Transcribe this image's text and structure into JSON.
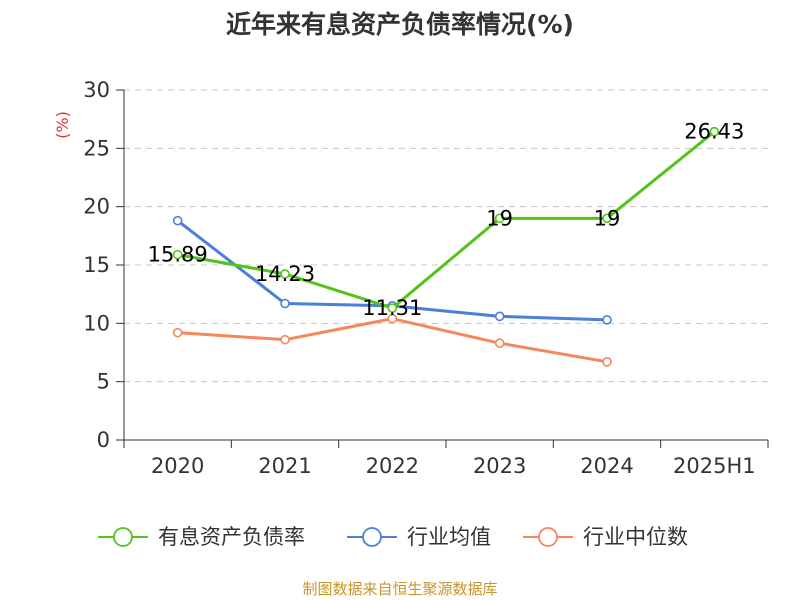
{
  "chart_data": {
    "type": "line",
    "title": "近年来有息资产负债率情况(%)",
    "ylabel": "(%)",
    "xlabel": "",
    "categories": [
      "2020",
      "2021",
      "2022",
      "2023",
      "2024",
      "2025H1"
    ],
    "ylim": [
      0,
      30
    ],
    "yticks": [
      0,
      5,
      10,
      15,
      20,
      25,
      30
    ],
    "grid": true,
    "legend_position": "bottom",
    "series": [
      {
        "name": "有息资产负债率",
        "color": "#52c41a",
        "values": [
          15.89,
          14.23,
          11.31,
          19,
          19,
          26.43
        ],
        "labels": [
          "15.89",
          "14.23",
          "11.31",
          "19",
          "19",
          "26.43"
        ]
      },
      {
        "name": "行业均值",
        "color": "#4a7fdb",
        "values": [
          18.8,
          11.7,
          11.5,
          10.6,
          10.3,
          null
        ]
      },
      {
        "name": "行业中位数",
        "color": "#f5875a",
        "values": [
          9.2,
          8.6,
          10.4,
          8.3,
          6.7,
          null
        ]
      }
    ]
  },
  "source": {
    "text": "制图数据来自恒生聚源数据库",
    "color": "#c8952a"
  },
  "ylabel_color": "#dd3333"
}
